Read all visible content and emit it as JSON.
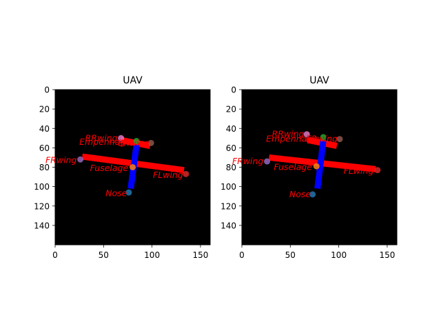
{
  "chart_data": [
    {
      "type": "scatter",
      "title": "UAV",
      "xlim": [
        0,
        160
      ],
      "ylim": [
        160,
        0
      ],
      "x_ticks": [
        0,
        50,
        100,
        150
      ],
      "y_ticks": [
        0,
        20,
        40,
        60,
        80,
        100,
        120,
        140
      ],
      "background": "#000000",
      "keypoints": [
        {
          "name": "RRwing",
          "x": 68,
          "y": 50,
          "color": "#e377c2"
        },
        {
          "name": "Empennage",
          "x": 84,
          "y": 53,
          "color": "#2ca02c"
        },
        {
          "name": "ERwing",
          "x": 99,
          "y": 55,
          "color": "#8c564b"
        },
        {
          "name": "FRwing",
          "x": 26,
          "y": 72,
          "color": "#9467bd"
        },
        {
          "name": "Fuselage",
          "x": 80,
          "y": 80,
          "color": "#ff7f0e"
        },
        {
          "name": "FLwing",
          "x": 135,
          "y": 87,
          "color": "#d62728"
        },
        {
          "name": "Nose",
          "x": 76,
          "y": 106,
          "color": "#1f77b4"
        }
      ],
      "segments": [
        {
          "from": [
            68,
            52
          ],
          "to": [
            98,
            58
          ],
          "color": "#ff0000"
        },
        {
          "from": [
            28,
            69
          ],
          "to": [
            133,
            83
          ],
          "color": "#ff0000"
        },
        {
          "from": [
            84,
            57
          ],
          "to": [
            78,
            102
          ],
          "color": "#0000ff"
        }
      ],
      "labels": [
        {
          "text": "RRwing",
          "x": 31,
          "y": 50
        },
        {
          "text": "Empennage",
          "x": 25,
          "y": 54
        },
        {
          "text": "ERwing",
          "x": 65,
          "y": 55
        },
        {
          "text": "FRwing",
          "x": -10,
          "y": 73
        },
        {
          "text": "Fuselage",
          "x": 36,
          "y": 81
        },
        {
          "text": "FLwing",
          "x": 101,
          "y": 88
        },
        {
          "text": "Nose",
          "x": 52,
          "y": 107
        }
      ]
    },
    {
      "type": "scatter",
      "title": "UAV",
      "xlim": [
        0,
        160
      ],
      "ylim": [
        160,
        0
      ],
      "x_ticks": [
        0,
        50,
        100,
        150
      ],
      "y_ticks": [
        0,
        20,
        40,
        60,
        80,
        100,
        120,
        140
      ],
      "background": "#000000",
      "keypoints": [
        {
          "name": "RRwing",
          "x": 67,
          "y": 46,
          "color": "#e377c2"
        },
        {
          "name": "Empennage",
          "x": 84,
          "y": 49,
          "color": "#2ca02c"
        },
        {
          "name": "ERwing",
          "x": 101,
          "y": 51,
          "color": "#8c564b"
        },
        {
          "name": "FRwing",
          "x": 26,
          "y": 74,
          "color": "#9467bd"
        },
        {
          "name": "Fuselage",
          "x": 77,
          "y": 79,
          "color": "#ff7f0e"
        },
        {
          "name": "FLwing",
          "x": 140,
          "y": 83,
          "color": "#d62728"
        },
        {
          "name": "Nose",
          "x": 73,
          "y": 108,
          "color": "#1f77b4"
        }
      ],
      "segments": [
        {
          "from": [
            68,
            52
          ],
          "to": [
            98,
            58
          ],
          "color": "#ff0000"
        },
        {
          "from": [
            28,
            70
          ],
          "to": [
            138,
            82
          ],
          "color": "#ff0000"
        },
        {
          "from": [
            84,
            53
          ],
          "to": [
            78,
            102
          ],
          "color": "#0000ff"
        }
      ],
      "labels": [
        {
          "text": "RRwing",
          "x": 31,
          "y": 46
        },
        {
          "text": "Empennage",
          "x": 25,
          "y": 51
        },
        {
          "text": "ERwing",
          "x": 66,
          "y": 51
        },
        {
          "text": "FRwing",
          "x": -10,
          "y": 74
        },
        {
          "text": "Fuselage",
          "x": 33,
          "y": 80
        },
        {
          "text": "FLwing",
          "x": 105,
          "y": 84
        },
        {
          "text": "Nose",
          "x": 49,
          "y": 108
        }
      ]
    }
  ]
}
